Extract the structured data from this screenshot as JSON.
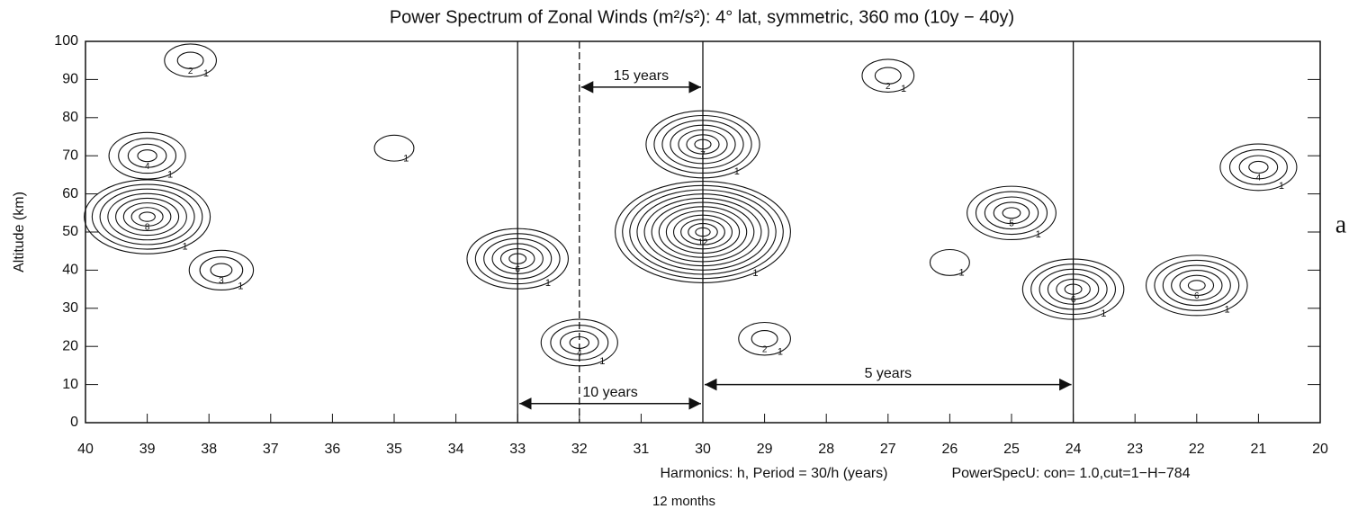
{
  "chart_data": {
    "type": "contour",
    "title": "Power Spectrum of Zonal Winds (m²/s²): 4° lat, symmetric, 360 mo (10y − 40y)",
    "xlabel": "Harmonics: h, Period = 30/h (years)",
    "ylabel": "Altitude (km)",
    "note": "PowerSpecU: con= 1.0,cut=1−H−784",
    "sublabel": "12 months",
    "panel_label": "a",
    "xlim": [
      40,
      20
    ],
    "xticks": [
      40,
      39,
      38,
      37,
      36,
      35,
      34,
      33,
      32,
      31,
      30,
      29,
      28,
      27,
      26,
      25,
      24,
      23,
      22,
      21,
      20
    ],
    "ylim": [
      0,
      100
    ],
    "yticks": [
      0,
      10,
      20,
      30,
      40,
      50,
      60,
      70,
      80,
      90,
      100
    ],
    "color": "#111111",
    "vlines": [
      {
        "x": 33,
        "style": "solid"
      },
      {
        "x": 32,
        "style": "dashed"
      },
      {
        "x": 30,
        "style": "solid"
      },
      {
        "x": 24,
        "style": "solid"
      }
    ],
    "arrows": [
      {
        "text": "15 years",
        "x": [
          32,
          30
        ],
        "y": 88
      },
      {
        "text": "10 years",
        "x": [
          33,
          30
        ],
        "y": 5
      },
      {
        "text": "5 years",
        "x": [
          30,
          24
        ],
        "y": 10
      }
    ],
    "peaks": [
      {
        "x": 39,
        "y": 70,
        "levels": [
          1,
          2,
          3,
          4
        ]
      },
      {
        "x": 39,
        "y": 54,
        "levels": [
          1,
          2,
          3,
          4,
          5,
          6,
          7,
          8
        ]
      },
      {
        "x": 37.8,
        "y": 40,
        "levels": [
          1,
          2,
          3
        ]
      },
      {
        "x": 35,
        "y": 72,
        "levels": [
          1
        ]
      },
      {
        "x": 33,
        "y": 43,
        "levels": [
          1,
          2,
          3,
          4,
          5,
          6
        ]
      },
      {
        "x": 32,
        "y": 21,
        "levels": [
          1,
          2,
          3,
          4
        ]
      },
      {
        "x": 30,
        "y": 73,
        "levels": [
          1,
          2,
          3,
          4,
          5,
          6,
          7
        ]
      },
      {
        "x": 30,
        "y": 50,
        "levels": [
          1,
          2,
          3,
          4,
          5,
          6,
          7,
          8,
          9,
          10,
          11,
          12
        ]
      },
      {
        "x": 25,
        "y": 55,
        "levels": [
          1,
          2,
          3,
          4,
          5
        ]
      },
      {
        "x": 24,
        "y": 35,
        "levels": [
          1,
          2,
          3,
          4,
          5,
          6
        ]
      },
      {
        "x": 22,
        "y": 36,
        "levels": [
          1,
          2,
          3,
          4,
          5,
          6
        ]
      },
      {
        "x": 21,
        "y": 67,
        "levels": [
          1,
          2,
          3,
          4
        ]
      },
      {
        "x": 38.3,
        "y": 95,
        "levels": [
          1,
          2
        ]
      },
      {
        "x": 27,
        "y": 91,
        "levels": [
          1,
          2
        ]
      },
      {
        "x": 29,
        "y": 22,
        "levels": [
          1,
          2
        ]
      },
      {
        "x": 26,
        "y": 42,
        "levels": [
          1
        ]
      }
    ]
  }
}
